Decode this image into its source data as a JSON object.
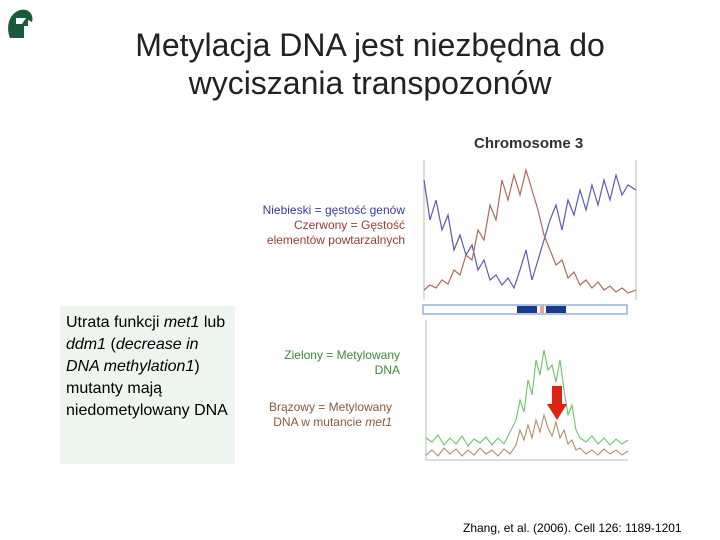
{
  "slide": {
    "title_line1": "Metylacja DNA jest niezbędna do",
    "title_line2": "wyciszania transpozonów",
    "figure_title": "Chromosome 3",
    "legend_top": {
      "blue": "Niebieski = gęstość genów",
      "red": "Czerwony = Gęstość elementów powtarzalnych"
    },
    "legend_green": "Zielony = Metylowany DNA",
    "legend_brown_prefix": "Brązowy = Metylowany DNA w mutancie",
    "legend_brown_italic": "met1",
    "note": {
      "t1": "Utrata funkcji ",
      "i1": "met1",
      "t2": " lub ",
      "i2": "ddm1",
      "t3": " (",
      "i3": "decrease in DNA methylation1",
      "t4": ") mutanty mają niedometylowany DNA"
    },
    "citation": "Zhang, et al. (2006). Cell 126: 1189-1201"
  },
  "colors": {
    "gene_density": "#5a5ab0",
    "repeat_density": "#b06a5a",
    "methylated": "#6cc36a",
    "mutant": "#b0906a",
    "arrow": "#e02010",
    "logo": "#1a5a3a"
  }
}
